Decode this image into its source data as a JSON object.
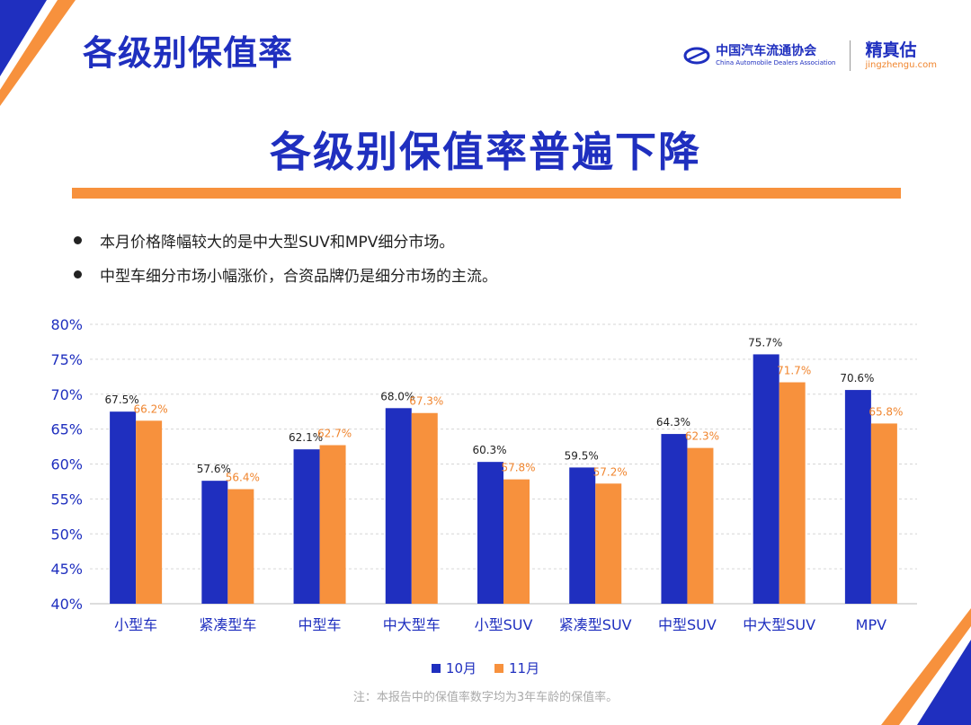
{
  "header": {
    "title": "各级别保值率"
  },
  "logos": {
    "cada_cn": "中国汽车流通协会",
    "cada_en": "China Automobile Dealers Association",
    "jzg_cn": "精真估",
    "jzg_en": "jingzhengu.com"
  },
  "main_title": "各级别保值率普遍下降",
  "bullets": [
    "本月价格降幅较大的是中大型SUV和MPV细分市场。",
    "中型车细分市场小幅涨价，合资品牌仍是细分市场的主流。"
  ],
  "chart_data": {
    "type": "bar",
    "categories": [
      "小型车",
      "紧凑型车",
      "中型车",
      "中大型车",
      "小型SUV",
      "紧凑型SUV",
      "中型SUV",
      "中大型SUV",
      "MPV"
    ],
    "series": [
      {
        "name": "10月",
        "values": [
          67.5,
          57.6,
          62.1,
          68.0,
          60.3,
          59.5,
          64.3,
          75.7,
          70.6
        ],
        "labels": [
          "67.5%",
          "57.6%",
          "62.1%",
          "68.0%",
          "60.3%",
          "59.5%",
          "64.3%",
          "75.7%",
          "70.6%"
        ]
      },
      {
        "name": "11月",
        "values": [
          66.2,
          56.4,
          62.7,
          67.3,
          57.8,
          57.2,
          62.3,
          71.7,
          65.8
        ],
        "labels": [
          "66.2%",
          "56.4%",
          "62.7%",
          "67.3%",
          "57.8%",
          "57.2%",
          "62.3%",
          "71.7%",
          "65.8%"
        ]
      }
    ],
    "ylim": [
      40,
      80
    ],
    "yticks": [
      40,
      45,
      50,
      55,
      60,
      65,
      70,
      75,
      80
    ],
    "ytick_labels": [
      "40%",
      "45%",
      "50%",
      "55%",
      "60%",
      "65%",
      "70%",
      "75%",
      "80%"
    ],
    "grid": true,
    "legend_position": "bottom",
    "colors": {
      "oct": "#1F2FBF",
      "nov": "#F7913D",
      "oct_label": "#222222",
      "nov_label": "#F0852E"
    }
  },
  "footnote": "注：本报告中的保值率数字均为3年车龄的保值率。"
}
